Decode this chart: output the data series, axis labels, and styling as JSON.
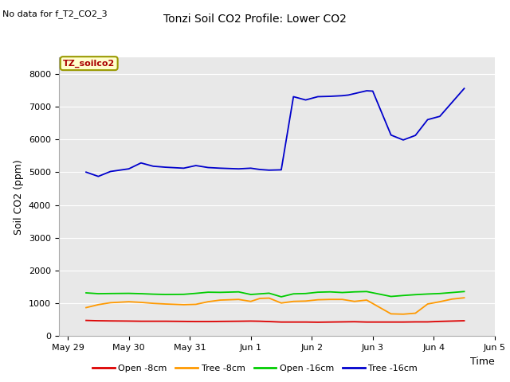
{
  "title": "Tonzi Soil CO2 Profile: Lower CO2",
  "subtitle": "No data for f_T2_CO2_3",
  "xlabel": "Time",
  "ylabel": "Soil CO2 (ppm)",
  "legend_label": "TZ_soilco2",
  "legend_label_color": "#aa0000",
  "legend_label_bg": "#ffffcc",
  "ylim": [
    0,
    8500
  ],
  "yticks": [
    0,
    1000,
    2000,
    3000,
    4000,
    5000,
    6000,
    7000,
    8000
  ],
  "bg_color": "#e8e8e8",
  "series": {
    "open_8cm": {
      "label": "Open -8cm",
      "color": "#dd0000",
      "x": [
        0.3,
        0.5,
        0.7,
        1.0,
        1.2,
        1.4,
        1.6,
        1.9,
        2.1,
        2.3,
        2.5,
        2.8,
        3.0,
        3.15,
        3.3,
        3.5,
        3.7,
        3.9,
        4.1,
        4.3,
        4.5,
        4.7,
        4.9,
        5.3,
        5.5,
        5.7,
        5.9,
        6.1,
        6.3,
        6.5
      ],
      "y": [
        480,
        470,
        465,
        460,
        455,
        455,
        455,
        450,
        445,
        445,
        450,
        455,
        460,
        455,
        445,
        430,
        430,
        430,
        425,
        430,
        435,
        440,
        430,
        430,
        430,
        435,
        435,
        450,
        460,
        470
      ]
    },
    "tree_8cm": {
      "label": "Tree -8cm",
      "color": "#ff9900",
      "x": [
        0.3,
        0.5,
        0.7,
        1.0,
        1.2,
        1.4,
        1.6,
        1.9,
        2.1,
        2.3,
        2.5,
        2.8,
        3.0,
        3.15,
        3.3,
        3.5,
        3.7,
        3.9,
        4.1,
        4.3,
        4.5,
        4.7,
        4.9,
        5.3,
        5.5,
        5.7,
        5.9,
        6.1,
        6.3,
        6.5
      ],
      "y": [
        870,
        960,
        1020,
        1050,
        1030,
        1000,
        980,
        960,
        970,
        1050,
        1100,
        1120,
        1060,
        1150,
        1160,
        1010,
        1060,
        1070,
        1110,
        1120,
        1120,
        1060,
        1100,
        680,
        670,
        700,
        980,
        1050,
        1130,
        1170
      ]
    },
    "open_16cm": {
      "label": "Open -16cm",
      "color": "#00cc00",
      "x": [
        0.3,
        0.5,
        0.7,
        1.0,
        1.2,
        1.4,
        1.6,
        1.9,
        2.1,
        2.3,
        2.5,
        2.8,
        3.0,
        3.15,
        3.3,
        3.5,
        3.7,
        3.9,
        4.1,
        4.3,
        4.5,
        4.7,
        4.9,
        5.3,
        5.5,
        5.7,
        5.9,
        6.1,
        6.3,
        6.5
      ],
      "y": [
        1320,
        1295,
        1300,
        1305,
        1295,
        1280,
        1270,
        1275,
        1305,
        1340,
        1335,
        1350,
        1270,
        1290,
        1310,
        1200,
        1290,
        1300,
        1340,
        1350,
        1330,
        1350,
        1360,
        1210,
        1240,
        1265,
        1285,
        1300,
        1330,
        1360
      ]
    },
    "tree_16cm": {
      "label": "Tree -16cm",
      "color": "#0000cc",
      "x": [
        0.3,
        0.5,
        0.7,
        1.0,
        1.2,
        1.4,
        1.6,
        1.9,
        2.1,
        2.3,
        2.5,
        2.8,
        3.0,
        3.15,
        3.3,
        3.5,
        3.7,
        3.9,
        4.1,
        4.3,
        4.5,
        4.6,
        4.9,
        5.0,
        5.3,
        5.5,
        5.7,
        5.9,
        6.1,
        6.5
      ],
      "y": [
        5000,
        4870,
        5020,
        5100,
        5280,
        5180,
        5150,
        5120,
        5200,
        5140,
        5120,
        5100,
        5120,
        5080,
        5060,
        5070,
        7300,
        7200,
        7300,
        7310,
        7330,
        7350,
        7480,
        7470,
        6130,
        5980,
        6120,
        6600,
        6700,
        7550
      ]
    }
  },
  "xtick_positions": [
    0,
    1,
    2,
    3,
    4,
    5,
    6,
    7
  ],
  "xtick_labels": [
    "May 29",
    "May 30",
    "May 31",
    "Jun 1",
    "Jun 2",
    "Jun 3",
    "Jun 4",
    "Jun 5"
  ],
  "xlim": [
    -0.15,
    7.0
  ]
}
